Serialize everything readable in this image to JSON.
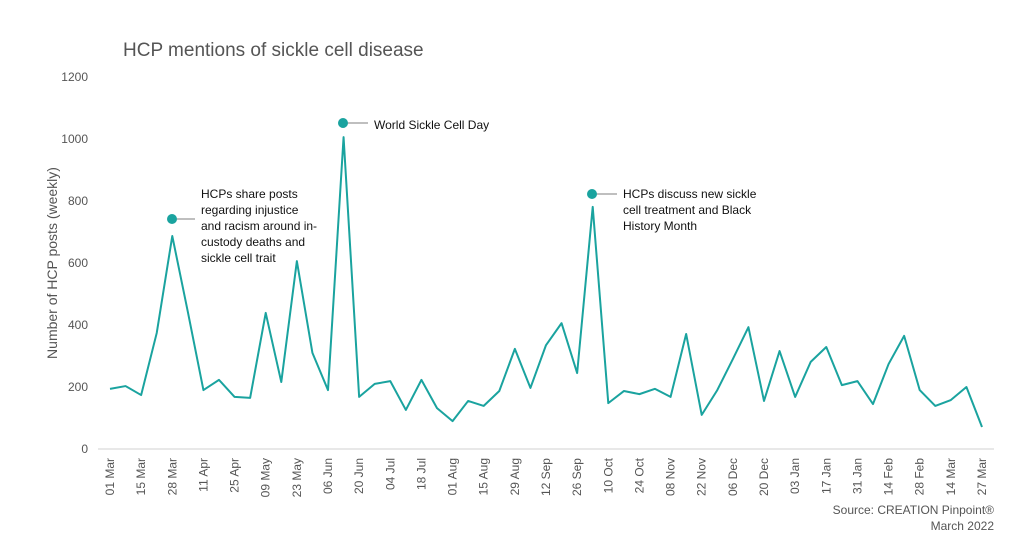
{
  "chart_data": {
    "type": "line",
    "title": "HCP mentions of sickle cell disease",
    "y_label": "Number of HCP posts (weekly)",
    "categories": [
      "01 Mar",
      null,
      "15 Mar",
      null,
      "28 Mar",
      null,
      "11 Apr",
      null,
      "25 Apr",
      null,
      "09 May",
      null,
      "23 May",
      null,
      "06 Jun",
      null,
      "20 Jun",
      null,
      "04 Jul",
      null,
      "18 Jul",
      null,
      "01 Aug",
      null,
      "15 Aug",
      null,
      "29 Aug",
      null,
      "12 Sep",
      null,
      "26 Sep",
      null,
      "10 Oct",
      null,
      "24 Oct",
      null,
      "08 Nov",
      null,
      "22 Nov",
      null,
      "06 Dec",
      null,
      "20 Dec",
      null,
      "03 Jan",
      null,
      "17 Jan",
      null,
      "31 Jan",
      null,
      "14 Feb",
      null,
      "28 Feb",
      null,
      "14 Mar",
      null,
      "27 Mar"
    ],
    "series": [
      {
        "name": "HCP posts",
        "color": "#1aa39f",
        "values": [
          194,
          203,
          174,
          374,
          687,
          442,
          190,
          223,
          168,
          165,
          439,
          216,
          606,
          310,
          190,
          1006,
          168,
          210,
          219,
          126,
          223,
          132,
          90,
          155,
          139,
          187,
          323,
          197,
          335,
          406,
          245,
          781,
          148,
          187,
          177,
          194,
          168,
          371,
          110,
          190,
          290,
          393,
          155,
          316,
          168,
          281,
          329,
          206,
          219,
          145,
          274,
          365,
          190,
          139,
          158,
          200,
          71
        ]
      }
    ],
    "ylim": [
      0,
      1200
    ],
    "yticks": [
      0,
      200,
      400,
      600,
      800,
      1000,
      1200
    ],
    "grid": false,
    "annotations": [
      [
        "HCPs share posts",
        "regarding injustice",
        "and racism around in-",
        "custody deaths and",
        "sickle cell trait"
      ],
      [
        "World Sickle Cell Day"
      ],
      [
        "HCPs discuss new sickle",
        "cell treatment and Black",
        "History Month"
      ]
    ],
    "source": [
      "Source: CREATION Pinpoint®",
      "March 2022"
    ]
  }
}
